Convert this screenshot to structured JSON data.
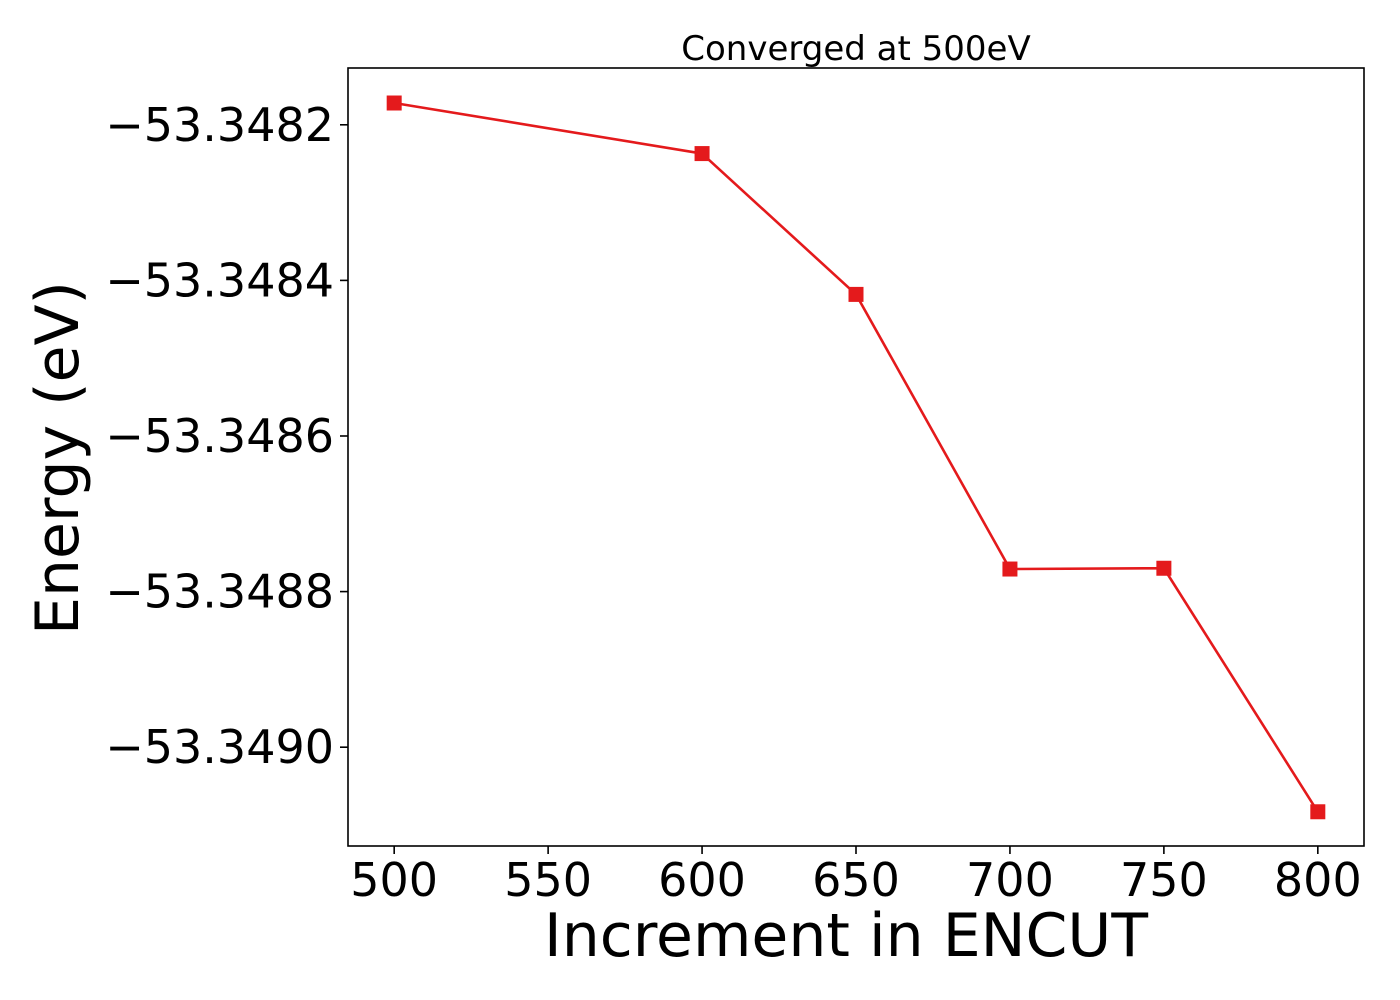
{
  "chart_data": {
    "type": "line",
    "title": "Converged at 500eV",
    "xlabel": "Increment in ENCUT",
    "ylabel": "Energy (eV)",
    "x": [
      500,
      600,
      650,
      700,
      750,
      800
    ],
    "series": [
      {
        "values": [
          -53.348172,
          -53.348237,
          -53.348418,
          -53.348771,
          -53.34877,
          -53.349083
        ],
        "color": "#e41a1c",
        "marker": "square"
      }
    ],
    "xlim": [
      485,
      815
    ],
    "ylim": [
      -53.349127,
      -53.348127
    ],
    "xticks": [
      500,
      550,
      600,
      650,
      700,
      750,
      800
    ],
    "yticks": [
      -53.3482,
      -53.3484,
      -53.3486,
      -53.3488,
      -53.349
    ],
    "ytick_labels": [
      "−53.3482",
      "−53.3484",
      "−53.3486",
      "−53.3488",
      "−53.3490"
    ],
    "grid": false,
    "legend": "none"
  }
}
